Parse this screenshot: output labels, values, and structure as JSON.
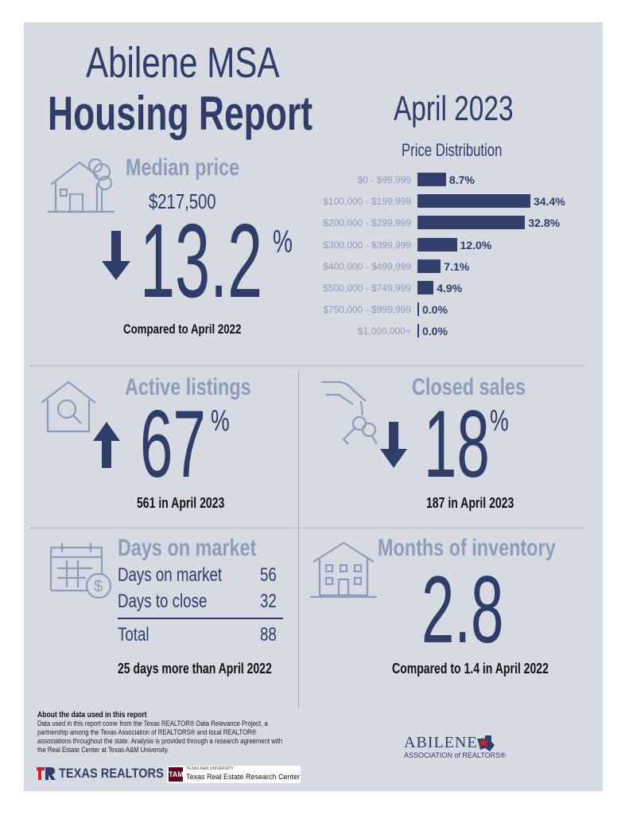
{
  "header": {
    "title_line1": "Abilene MSA",
    "title_line2": "Housing Report",
    "period": "April 2023"
  },
  "median_price": {
    "label": "Median price",
    "value": "$217,500",
    "change": "13.2",
    "percent_sign": "%",
    "direction": "down",
    "comparison": "Compared to April 2022",
    "icon": "house-tree-icon"
  },
  "price_distribution": {
    "title": "Price Distribution",
    "rows": [
      {
        "range": "$0 - $99,999",
        "percent": "8.7%",
        "value": 8.7
      },
      {
        "range": "$100,000 - $199,999",
        "percent": "34.4%",
        "value": 34.4
      },
      {
        "range": "$200,000 - $299,999",
        "percent": "32.8%",
        "value": 32.8
      },
      {
        "range": "$300,000 - $399,999",
        "percent": "12.0%",
        "value": 12.0
      },
      {
        "range": "$400,000 - $499,999",
        "percent": "7.1%",
        "value": 7.1
      },
      {
        "range": "$500,000 - $749,999",
        "percent": "4.9%",
        "value": 4.9
      },
      {
        "range": "$750,000 - $999,999",
        "percent": "0.0%",
        "value": 0.0
      },
      {
        "range": "$1,000,000+",
        "percent": "0.0%",
        "value": 0.0
      }
    ]
  },
  "active_listings": {
    "label": "Active listings",
    "change": "67",
    "percent_sign": "%",
    "direction": "up",
    "detail": "561 in April 2023",
    "icon": "house-magnifier-icon"
  },
  "closed_sales": {
    "label": "Closed sales",
    "change": "18",
    "percent_sign": "%",
    "direction": "down",
    "detail": "187 in April 2023",
    "icon": "hand-keys-icon"
  },
  "days_on_market": {
    "label": "Days on market",
    "rows": [
      {
        "name": "Days on market",
        "value": "56"
      },
      {
        "name": "Days to close",
        "value": "32"
      }
    ],
    "total_label": "Total",
    "total_value": "88",
    "comparison": "25 days more than April 2022",
    "icon": "calendar-dollar-icon"
  },
  "months_of_inventory": {
    "label": "Months of inventory",
    "value": "2.8",
    "comparison": "Compared to 1.4 in April 2022",
    "icon": "building-icon"
  },
  "footer": {
    "about_title": "About the data used in this report",
    "about_text": "Data used in this report come from the Texas REALTOR® Data Relevance Project, a partnership among the Texas Association of REALTORS® and local REALTOR® associations throughout the state. Analysis is provided through a research agreement with the Real Estate Center at Texas A&M University.",
    "texas_realtors": "TEXAS REALTORS",
    "tamu_small": "TEXAS A&M UNIVERSITY",
    "tamu_name": "Texas Real Estate Research Center",
    "abilene_name": "ABILENE",
    "abilene_sub": "ASSOCIATION of REALTORS®"
  },
  "colors": {
    "navy": "#2f3d68",
    "light_blue": "#8d9cb8",
    "panel": "#d6dbe3",
    "red": "#c8232c"
  }
}
